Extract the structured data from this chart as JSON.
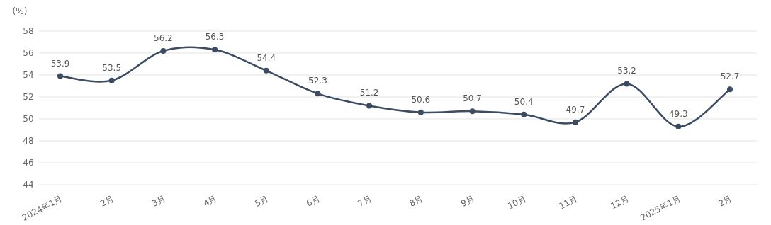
{
  "chart_data": {
    "type": "line",
    "ylabel": "(%)",
    "categories": [
      "2024年1月",
      "2月",
      "3月",
      "4月",
      "5月",
      "6月",
      "7月",
      "8月",
      "9月",
      "10月",
      "11月",
      "12月",
      "2025年1月",
      "2月"
    ],
    "values": [
      53.9,
      53.5,
      56.2,
      56.3,
      54.4,
      52.3,
      51.2,
      50.6,
      50.7,
      50.4,
      49.7,
      53.2,
      49.3,
      52.7
    ],
    "color": "#3b4b61",
    "ylim": [
      44,
      58
    ],
    "yticks": [
      44,
      46,
      48,
      50,
      52,
      54,
      56,
      58
    ],
    "grid": "y",
    "marker": "circle",
    "data_labels": true
  }
}
